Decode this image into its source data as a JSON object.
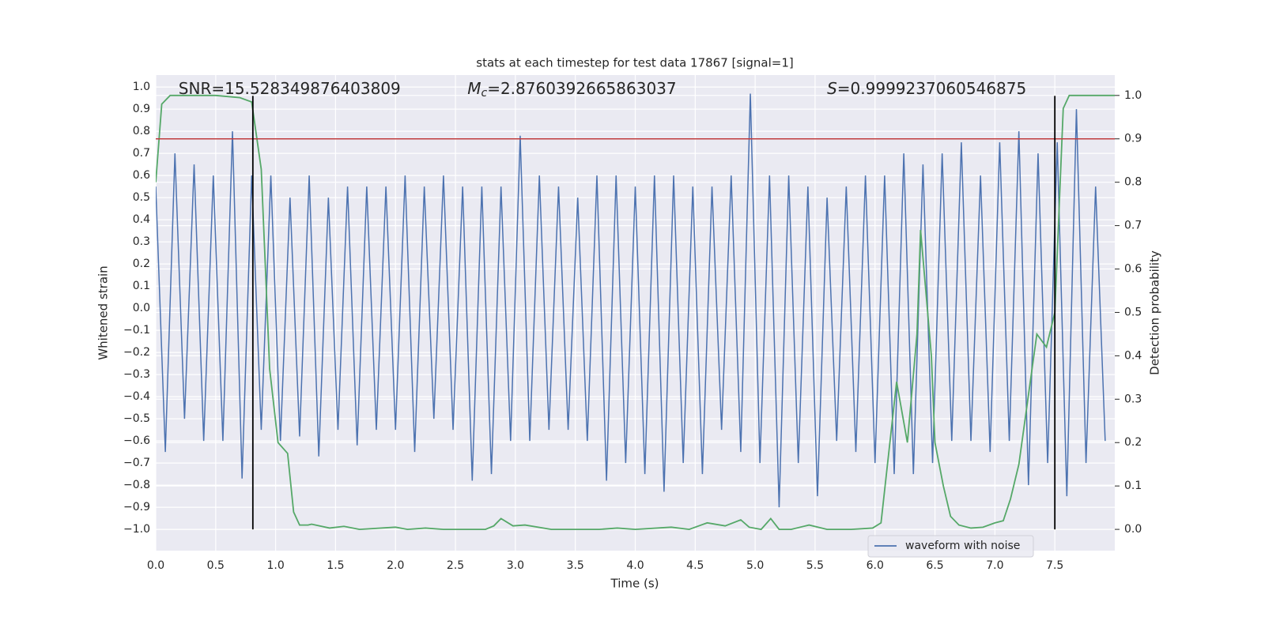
{
  "chart_data": {
    "type": "line",
    "title": "stats at each timestep for test data 17867 [signal=1]",
    "xlabel": "Time (s)",
    "ylabel": "Whitened strain",
    "y2label": "Detection probability",
    "xlim": [
      0,
      8
    ],
    "ylim": [
      -1.096,
      1.054
    ],
    "y2lim": [
      -0.049,
      1.047
    ],
    "xticks": [
      {
        "value": 0,
        "label": "0.0"
      },
      {
        "value": 0.5,
        "label": "0.5"
      },
      {
        "value": 1,
        "label": "1.0"
      },
      {
        "value": 1.5,
        "label": "1.5"
      },
      {
        "value": 2,
        "label": "2.0"
      },
      {
        "value": 2.5,
        "label": "2.5"
      },
      {
        "value": 3,
        "label": "3.0"
      },
      {
        "value": 3.5,
        "label": "3.5"
      },
      {
        "value": 4,
        "label": "4.0"
      },
      {
        "value": 4.5,
        "label": "4.5"
      },
      {
        "value": 5,
        "label": "5.0"
      },
      {
        "value": 5.5,
        "label": "5.5"
      },
      {
        "value": 6,
        "label": "6.0"
      },
      {
        "value": 6.5,
        "label": "6.5"
      },
      {
        "value": 7,
        "label": "7.0"
      },
      {
        "value": 7.5,
        "label": "7.5"
      }
    ],
    "yticks": [
      {
        "value": -1,
        "label": "−1.0"
      },
      {
        "value": -0.9,
        "label": "−0.9"
      },
      {
        "value": -0.8,
        "label": "−0.8"
      },
      {
        "value": -0.7,
        "label": "−0.7"
      },
      {
        "value": -0.6,
        "label": "−0.6"
      },
      {
        "value": -0.5,
        "label": "−0.5"
      },
      {
        "value": -0.4,
        "label": "−0.4"
      },
      {
        "value": -0.3,
        "label": "−0.3"
      },
      {
        "value": -0.2,
        "label": "−0.2"
      },
      {
        "value": -0.1,
        "label": "−0.1"
      },
      {
        "value": 0,
        "label": "0.0"
      },
      {
        "value": 0.1,
        "label": "0.1"
      },
      {
        "value": 0.2,
        "label": "0.2"
      },
      {
        "value": 0.3,
        "label": "0.3"
      },
      {
        "value": 0.4,
        "label": "0.4"
      },
      {
        "value": 0.5,
        "label": "0.5"
      },
      {
        "value": 0.6,
        "label": "0.6"
      },
      {
        "value": 0.7,
        "label": "0.7"
      },
      {
        "value": 0.8,
        "label": "0.8"
      },
      {
        "value": 0.9,
        "label": "0.9"
      },
      {
        "value": 1,
        "label": "1.0"
      }
    ],
    "y2ticks": [
      {
        "value": 0,
        "label": "0.0"
      },
      {
        "value": 0.1,
        "label": "0.1"
      },
      {
        "value": 0.2,
        "label": "0.2"
      },
      {
        "value": 0.3,
        "label": "0.3"
      },
      {
        "value": 0.4,
        "label": "0.4"
      },
      {
        "value": 0.5,
        "label": "0.5"
      },
      {
        "value": 0.6,
        "label": "0.6"
      },
      {
        "value": 0.7,
        "label": "0.7"
      },
      {
        "value": 0.8,
        "label": "0.8"
      },
      {
        "value": 0.9,
        "label": "0.9"
      },
      {
        "value": 1,
        "label": "1.0"
      }
    ],
    "grid": true,
    "legend": "lower right",
    "series": [
      {
        "name": "waveform with noise",
        "color": "#4c72b0",
        "x": [
          0,
          0.08,
          0.16,
          0.24,
          0.32,
          0.4,
          0.48,
          0.56,
          0.64,
          0.72,
          0.8,
          0.88,
          0.96,
          1.04,
          1.12,
          1.2,
          1.28,
          1.36,
          1.44,
          1.52,
          1.6,
          1.68,
          1.76,
          1.84,
          1.92,
          2,
          2.08,
          2.16,
          2.24,
          2.32,
          2.4,
          2.48,
          2.56,
          2.64,
          2.72,
          2.8,
          2.88,
          2.96,
          3.04,
          3.12,
          3.2,
          3.28,
          3.36,
          3.44,
          3.52,
          3.6,
          3.68,
          3.76,
          3.84,
          3.92,
          4,
          4.08,
          4.16,
          4.24,
          4.32,
          4.4,
          4.48,
          4.56,
          4.64,
          4.72,
          4.8,
          4.88,
          4.96,
          5.04,
          5.12,
          5.2,
          5.28,
          5.36,
          5.44,
          5.52,
          5.6,
          5.68,
          5.76,
          5.84,
          5.92,
          6,
          6.08,
          6.16,
          6.24,
          6.32,
          6.4,
          6.48,
          6.56,
          6.64,
          6.72,
          6.8,
          6.88,
          6.96,
          7.04,
          7.12,
          7.2,
          7.28,
          7.36,
          7.44,
          7.52,
          7.6,
          7.68,
          7.76,
          7.84,
          7.92
        ],
        "values": [
          0.55,
          -0.65,
          0.7,
          -0.5,
          0.65,
          -0.6,
          0.6,
          -0.6,
          0.8,
          -0.77,
          0.6,
          -0.55,
          0.6,
          -0.6,
          0.5,
          -0.58,
          0.6,
          -0.67,
          0.5,
          -0.55,
          0.55,
          -0.62,
          0.55,
          -0.55,
          0.55,
          -0.55,
          0.6,
          -0.65,
          0.55,
          -0.5,
          0.6,
          -0.55,
          0.55,
          -0.78,
          0.55,
          -0.75,
          0.55,
          -0.6,
          0.78,
          -0.6,
          0.6,
          -0.55,
          0.55,
          -0.55,
          0.5,
          -0.6,
          0.6,
          -0.78,
          0.6,
          -0.7,
          0.55,
          -0.75,
          0.6,
          -0.83,
          0.6,
          -0.7,
          0.55,
          -0.75,
          0.55,
          -0.55,
          0.6,
          -0.65,
          0.97,
          -0.7,
          0.6,
          -0.9,
          0.6,
          -0.7,
          0.55,
          -0.85,
          0.5,
          -0.6,
          0.55,
          -0.65,
          0.6,
          -0.7,
          0.6,
          -0.75,
          0.7,
          -0.75,
          0.65,
          -0.7,
          0.7,
          -0.6,
          0.75,
          -0.6,
          0.6,
          -0.65,
          0.75,
          -0.6,
          0.8,
          -0.8,
          0.7,
          -0.7,
          0.75,
          -0.85,
          0.9,
          -0.7,
          0.55,
          -0.6
        ]
      },
      {
        "axis": "y2",
        "color": "#55a868",
        "x": [
          0,
          0.05,
          0.12,
          0.5,
          0.7,
          0.8,
          0.88,
          0.95,
          1.02,
          1.1,
          1.15,
          1.2,
          1.27,
          1.3,
          1.45,
          1.57,
          1.7,
          2,
          2.1,
          2.25,
          2.4,
          2.75,
          2.82,
          2.88,
          2.98,
          3.08,
          3.3,
          3.7,
          3.85,
          4,
          4.3,
          4.45,
          4.6,
          4.75,
          4.88,
          4.95,
          5.05,
          5.13,
          5.2,
          5.3,
          5.45,
          5.6,
          5.8,
          5.98,
          6.05,
          6.18,
          6.27,
          6.35,
          6.38,
          6.47,
          6.5,
          6.57,
          6.63,
          6.7,
          6.8,
          6.9,
          7,
          7.07,
          7.13,
          7.2,
          7.3,
          7.35,
          7.43,
          7.5,
          7.57,
          7.62,
          8
        ],
        "values": [
          0.8,
          0.98,
          1,
          1,
          0.995,
          0.985,
          0.83,
          0.37,
          0.2,
          0.175,
          0.04,
          0.01,
          0.01,
          0.012,
          0.003,
          0.007,
          0,
          0.005,
          0,
          0.003,
          0,
          0,
          0.008,
          0.025,
          0.008,
          0.01,
          0,
          0,
          0.003,
          0,
          0.005,
          0,
          0.015,
          0.008,
          0.022,
          0.005,
          0,
          0.025,
          0,
          0,
          0.01,
          0,
          0,
          0.003,
          0.015,
          0.34,
          0.2,
          0.45,
          0.69,
          0.4,
          0.2,
          0.1,
          0.03,
          0.01,
          0.003,
          0.005,
          0.015,
          0.02,
          0.07,
          0.15,
          0.35,
          0.45,
          0.42,
          0.5,
          0.97,
          1,
          1
        ]
      }
    ],
    "hline": {
      "value": 0.9,
      "axis": "y2",
      "color": "#c03d3e"
    },
    "vlines": {
      "x": [
        0.81,
        7.5
      ],
      "ymin": -1.0,
      "ymax": 0.96,
      "color": "#000000"
    },
    "annotations": [
      {
        "x": 0.19,
        "y": 0.99,
        "text": "SNR=15.528349876403809"
      },
      {
        "x": 2.6,
        "y": 0.99,
        "symbol": "M",
        "subscript": "c",
        "text": "=2.8760392665863037"
      },
      {
        "x": 5.6,
        "y": 0.99,
        "symbol": "S",
        "text": "=0.9999237060546875"
      }
    ]
  }
}
